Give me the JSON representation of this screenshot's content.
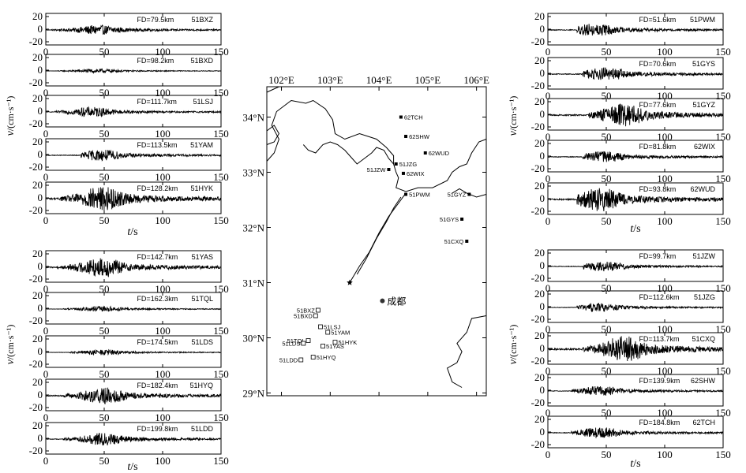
{
  "figure": {
    "axis": {
      "x_ticks": [
        "0",
        "50",
        "100",
        "150"
      ],
      "x_label": "t",
      "x_unit": "/s",
      "y_label": "v",
      "y_unit": "/(cm·s⁻¹)"
    }
  },
  "chart_data": [
    {
      "type": "line",
      "station": "51BXZ",
      "fd": "FD=79.5km",
      "amp": 0.35,
      "onset": 5,
      "peak": 45,
      "ylim": [
        -20,
        20
      ],
      "yticks": [
        "20",
        "0",
        "-20"
      ],
      "xlim": [
        0,
        150
      ]
    },
    {
      "type": "line",
      "station": "51BXD",
      "fd": "FD=98.2km",
      "amp": 0.15,
      "onset": 10,
      "peak": 45,
      "ylim": [
        -20,
        20
      ],
      "yticks": [
        "20",
        "0",
        "-20"
      ],
      "xlim": [
        0,
        150
      ]
    },
    {
      "type": "line",
      "station": "51LSJ",
      "fd": "FD=111.7km",
      "amp": 0.35,
      "onset": 8,
      "peak": 40,
      "ylim": [
        -20,
        20
      ],
      "yticks": [
        "20",
        "0",
        "-20"
      ],
      "xlim": [
        0,
        150
      ]
    },
    {
      "type": "line",
      "station": "51YAM",
      "fd": "FD=113.5km",
      "amp": 0.4,
      "onset": 30,
      "peak": 48,
      "ylim": [
        -20,
        20
      ],
      "yticks": [
        "20",
        "0",
        "-20"
      ],
      "xlim": [
        0,
        150
      ]
    },
    {
      "type": "line",
      "station": "51HYK",
      "fd": "FD=128.2km",
      "amp": 0.9,
      "onset": 12,
      "peak": 48,
      "ylim": [
        -20,
        20
      ],
      "yticks": [
        "20",
        "0",
        "-20"
      ],
      "xlim": [
        0,
        150
      ]
    },
    {
      "type": "line",
      "station": "51YAS",
      "fd": "FD=142.7km",
      "amp": 0.7,
      "onset": 10,
      "peak": 48,
      "ylim": [
        -20,
        20
      ],
      "yticks": [
        "20",
        "0",
        "-20"
      ],
      "xlim": [
        0,
        150
      ]
    },
    {
      "type": "line",
      "station": "51TQL",
      "fd": "FD=162.3km",
      "amp": 0.2,
      "onset": 15,
      "peak": 48,
      "ylim": [
        -20,
        20
      ],
      "yticks": [
        "20",
        "0",
        "-20"
      ],
      "xlim": [
        0,
        150
      ]
    },
    {
      "type": "line",
      "station": "51LDS",
      "fd": "FD=174.5km",
      "amp": 0.2,
      "onset": 20,
      "peak": 50,
      "ylim": [
        -20,
        20
      ],
      "yticks": [
        "20",
        "0",
        "-20"
      ],
      "xlim": [
        0,
        150
      ]
    },
    {
      "type": "line",
      "station": "51HYQ",
      "fd": "FD=182.4km",
      "amp": 0.6,
      "onset": 15,
      "peak": 50,
      "ylim": [
        -20,
        20
      ],
      "yticks": [
        "20",
        "0",
        "-20"
      ],
      "xlim": [
        0,
        150
      ]
    },
    {
      "type": "line",
      "station": "51LDD",
      "fd": "FD=199.8km",
      "amp": 0.45,
      "onset": 15,
      "peak": 50,
      "ylim": [
        -20,
        20
      ],
      "yticks": [
        "20",
        "0",
        "-20"
      ],
      "xlim": [
        0,
        150
      ]
    },
    {
      "type": "line",
      "station": "51PWM",
      "fd": "FD=51.6km",
      "amp": 0.45,
      "onset": 25,
      "peak": 40,
      "ylim": [
        -20,
        20
      ],
      "yticks": [
        "20",
        "0",
        "-20"
      ],
      "xlim": [
        0,
        150
      ]
    },
    {
      "type": "line",
      "station": "51GYS",
      "fd": "FD=70.6km",
      "amp": 0.5,
      "onset": 30,
      "peak": 50,
      "ylim": [
        -20,
        20
      ],
      "yticks": [
        "20",
        "0",
        "-20"
      ],
      "xlim": [
        0,
        150
      ]
    },
    {
      "type": "line",
      "station": "51GYZ",
      "fd": "FD=77.6km",
      "amp": 0.8,
      "onset": 35,
      "peak": 65,
      "ylim": [
        -20,
        20
      ],
      "yticks": [
        "20",
        "0",
        "-20"
      ],
      "xlim": [
        0,
        150
      ]
    },
    {
      "type": "line",
      "station": "62WIX",
      "fd": "FD=81.8km",
      "amp": 0.4,
      "onset": 30,
      "peak": 48,
      "ylim": [
        -20,
        20
      ],
      "yticks": [
        "20",
        "0",
        "-20"
      ],
      "xlim": [
        0,
        150
      ]
    },
    {
      "type": "line",
      "station": "62WUD",
      "fd": "FD=93.8km",
      "amp": 0.85,
      "onset": 25,
      "peak": 45,
      "ylim": [
        -20,
        20
      ],
      "yticks": [
        "20",
        "0",
        "-20"
      ],
      "xlim": [
        0,
        150
      ]
    },
    {
      "type": "line",
      "station": "51JZW",
      "fd": "FD=99.7km",
      "amp": 0.35,
      "onset": 30,
      "peak": 48,
      "ylim": [
        -20,
        20
      ],
      "yticks": [
        "20",
        "0",
        "-20"
      ],
      "xlim": [
        0,
        150
      ]
    },
    {
      "type": "line",
      "station": "51JZG",
      "fd": "FD=112.6km",
      "amp": 0.3,
      "onset": 25,
      "peak": 45,
      "ylim": [
        -20,
        20
      ],
      "yticks": [
        "20",
        "0",
        "-20"
      ],
      "xlim": [
        0,
        150
      ]
    },
    {
      "type": "line",
      "station": "51CXQ",
      "fd": "FD=113.7km",
      "amp": 0.95,
      "onset": 30,
      "peak": 65,
      "ylim": [
        -20,
        20
      ],
      "yticks": [
        "20",
        "0",
        "-20"
      ],
      "xlim": [
        0,
        150
      ]
    },
    {
      "type": "line",
      "station": "62SHW",
      "fd": "FD=139.9km",
      "amp": 0.35,
      "onset": 20,
      "peak": 45,
      "ylim": [
        -20,
        20
      ],
      "yticks": [
        "20",
        "0",
        "-20"
      ],
      "xlim": [
        0,
        150
      ]
    },
    {
      "type": "line",
      "station": "62TCH",
      "fd": "FD=184.8km",
      "amp": 0.4,
      "onset": 20,
      "peak": 45,
      "ylim": [
        -20,
        20
      ],
      "yticks": [
        "20",
        "0",
        "-20"
      ],
      "xlim": [
        0,
        150
      ]
    }
  ],
  "map": {
    "lon_ticks": [
      "102°E",
      "103°E",
      "104°E",
      "105°E",
      "106°E"
    ],
    "lat_ticks": [
      "34°N",
      "33°N",
      "32°N",
      "31°N",
      "30°N",
      "29°N"
    ],
    "lon_range": [
      101.7,
      106.2
    ],
    "lat_range": [
      28.95,
      34.55
    ],
    "city": {
      "name": "成都",
      "lon": 104.07,
      "lat": 30.67
    },
    "epicenter": {
      "lon": 103.4,
      "lat": 31.0
    },
    "stations_filled": [
      {
        "name": "62TCH",
        "lon": 104.45,
        "lat": 34.0
      },
      {
        "name": "62SHW",
        "lon": 104.55,
        "lat": 33.65
      },
      {
        "name": "62WUD",
        "lon": 104.95,
        "lat": 33.35
      },
      {
        "name": "51JZG",
        "lon": 104.35,
        "lat": 33.15
      },
      {
        "name": "51JZW",
        "lon": 104.2,
        "lat": 33.05
      },
      {
        "name": "62WIX",
        "lon": 104.5,
        "lat": 32.98
      },
      {
        "name": "51PWM",
        "lon": 104.55,
        "lat": 32.6
      },
      {
        "name": "51GYZ",
        "lon": 105.85,
        "lat": 32.6
      },
      {
        "name": "51GYS",
        "lon": 105.7,
        "lat": 32.15
      },
      {
        "name": "51CXQ",
        "lon": 105.8,
        "lat": 31.75
      }
    ],
    "stations_open": [
      {
        "name": "51BXZ",
        "lon": 102.75,
        "lat": 30.5
      },
      {
        "name": "51BXD",
        "lon": 102.7,
        "lat": 30.4
      },
      {
        "name": "51LSJ",
        "lon": 102.8,
        "lat": 30.2
      },
      {
        "name": "51YAM",
        "lon": 102.95,
        "lat": 30.1
      },
      {
        "name": "51TQL",
        "lon": 102.55,
        "lat": 29.95
      },
      {
        "name": "51LDS",
        "lon": 102.45,
        "lat": 29.9
      },
      {
        "name": "51HYK",
        "lon": 103.1,
        "lat": 29.92
      },
      {
        "name": "51YAS",
        "lon": 102.85,
        "lat": 29.85
      },
      {
        "name": "51HYQ",
        "lon": 102.65,
        "lat": 29.65
      },
      {
        "name": "51LDD",
        "lon": 102.4,
        "lat": 29.6
      }
    ]
  }
}
